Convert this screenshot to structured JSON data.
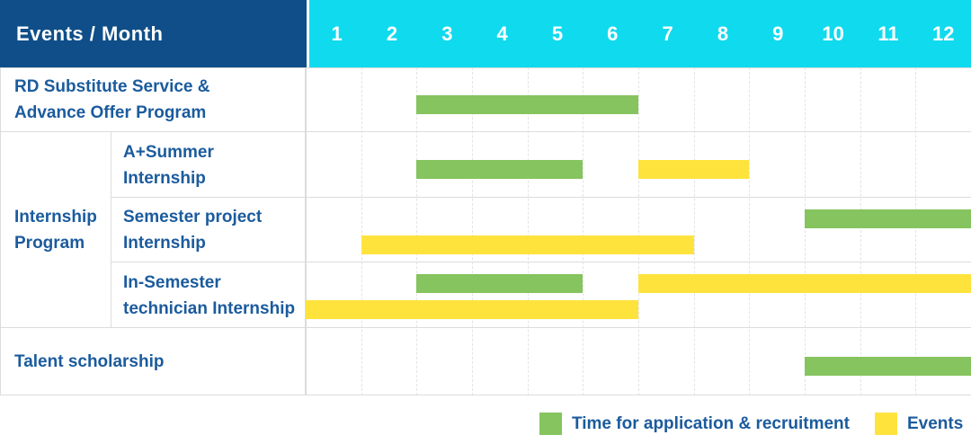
{
  "header": {
    "title": "Events / Month",
    "months": [
      "1",
      "2",
      "3",
      "4",
      "5",
      "6",
      "7",
      "8",
      "9",
      "10",
      "11",
      "12"
    ]
  },
  "colors": {
    "header_bg": "#0f4e88",
    "months_bg": "#10daee",
    "label_text": "#1b5b9d",
    "recruitment_green": "#85c45e",
    "event_yellow": "#ffe33d",
    "row_border": "#dcdcdc",
    "month_gridline": "#e4e4e4"
  },
  "chart_data": {
    "type": "gantt",
    "title": "Events / Month",
    "x_axis": "Month",
    "x_range": [
      1,
      12
    ],
    "months": [
      1,
      2,
      3,
      4,
      5,
      6,
      7,
      8,
      9,
      10,
      11,
      12
    ],
    "group_label": "Internship\nProgram",
    "rows": [
      {
        "label": "RD Substitute Service &\nAdvance Offer Program",
        "sub": false,
        "bars": [
          {
            "kind": "recruitment",
            "start_month": 3,
            "end_month": 6,
            "lane": "mid"
          }
        ]
      },
      {
        "label": "A+Summer\nInternship",
        "sub": true,
        "bars": [
          {
            "kind": "recruitment",
            "start_month": 3,
            "end_month": 5,
            "lane": "mid"
          },
          {
            "kind": "event",
            "start_month": 7,
            "end_month": 8,
            "lane": "mid"
          }
        ]
      },
      {
        "label": "Semester project\nInternship",
        "sub": true,
        "bars": [
          {
            "kind": "recruitment",
            "start_month": 10,
            "end_month": 12,
            "lane": "top"
          },
          {
            "kind": "event",
            "start_month": 2,
            "end_month": 7,
            "lane": "bottom"
          }
        ]
      },
      {
        "label": "In-Semester\ntechnician Internship",
        "sub": true,
        "bars": [
          {
            "kind": "recruitment",
            "start_month": 3,
            "end_month": 5,
            "lane": "top"
          },
          {
            "kind": "event",
            "start_month": 7,
            "end_month": 12,
            "lane": "top"
          },
          {
            "kind": "event",
            "start_month": 1,
            "end_month": 6,
            "lane": "bottom"
          }
        ]
      },
      {
        "label": "Talent scholarship",
        "sub": false,
        "bars": [
          {
            "kind": "recruitment",
            "start_month": 10,
            "end_month": 12,
            "lane": "mid"
          }
        ]
      }
    ],
    "legend": [
      {
        "kind": "recruitment",
        "label": "Time for application & recruitment",
        "color": "#85c45e"
      },
      {
        "kind": "event",
        "label": "Events",
        "color": "#ffe33d"
      }
    ]
  }
}
